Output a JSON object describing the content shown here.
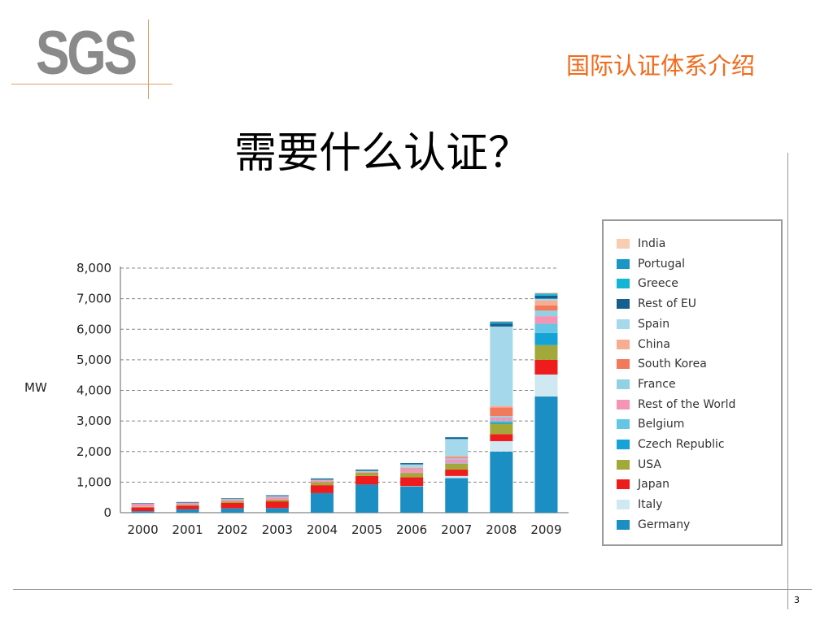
{
  "header": {
    "logo_text": "SGS",
    "title": "国际认证体系介绍"
  },
  "slide": {
    "title": "需要什么认证？",
    "page_number": "3"
  },
  "chart_data": {
    "type": "bar",
    "stacked": true,
    "ylabel": "MW",
    "ylim": [
      0,
      8000
    ],
    "yticks": [
      0,
      1000,
      2000,
      3000,
      4000,
      5000,
      6000,
      7000,
      8000
    ],
    "ytick_labels": [
      "0",
      "1,000",
      "2,000",
      "3,000",
      "4,000",
      "5,000",
      "6,000",
      "7,000",
      "8,000"
    ],
    "grid": true,
    "legend_position": "right",
    "categories": [
      "2000",
      "2001",
      "2002",
      "2003",
      "2004",
      "2005",
      "2006",
      "2007",
      "2008",
      "2009"
    ],
    "series": [
      {
        "name": "Germany",
        "color": "#1b8fc4",
        "values": [
          50,
          110,
          140,
          150,
          640,
          920,
          860,
          1130,
          2000,
          3800
        ]
      },
      {
        "name": "Italy",
        "color": "#cfe8f2",
        "values": [
          0,
          0,
          0,
          0,
          0,
          0,
          10,
          70,
          340,
          720
        ]
      },
      {
        "name": "Japan",
        "color": "#ee1c1c",
        "values": [
          120,
          120,
          180,
          220,
          260,
          280,
          290,
          210,
          230,
          480
        ]
      },
      {
        "name": "USA",
        "color": "#a3a83a",
        "values": [
          20,
          30,
          50,
          60,
          100,
          110,
          140,
          190,
          340,
          480
        ]
      },
      {
        "name": "Czech Republic",
        "color": "#15a3d6",
        "values": [
          0,
          0,
          0,
          0,
          0,
          0,
          0,
          0,
          50,
          400
        ]
      },
      {
        "name": "Belgium",
        "color": "#63c6e4",
        "values": [
          0,
          0,
          0,
          0,
          0,
          0,
          0,
          20,
          50,
          300
        ]
      },
      {
        "name": "Rest of the World",
        "color": "#f595b6",
        "values": [
          100,
          60,
          60,
          80,
          60,
          30,
          140,
          130,
          100,
          250
        ]
      },
      {
        "name": "France",
        "color": "#92d1e4",
        "values": [
          0,
          10,
          10,
          10,
          10,
          10,
          10,
          40,
          50,
          180
        ]
      },
      {
        "name": "South Korea",
        "color": "#f27a5c",
        "values": [
          0,
          0,
          0,
          0,
          0,
          0,
          20,
          40,
          280,
          170
        ]
      },
      {
        "name": "China",
        "color": "#f7ad8f",
        "values": [
          0,
          0,
          0,
          0,
          0,
          0,
          10,
          20,
          50,
          160
        ]
      },
      {
        "name": "Spain",
        "color": "#a4d8ea",
        "values": [
          0,
          0,
          10,
          20,
          10,
          20,
          100,
          560,
          2600,
          60
        ]
      },
      {
        "name": "Rest of EU",
        "color": "#145f8c",
        "values": [
          20,
          20,
          20,
          30,
          40,
          40,
          40,
          50,
          100,
          100
        ]
      },
      {
        "name": "Greece",
        "color": "#12b5d3",
        "values": [
          0,
          0,
          0,
          0,
          0,
          0,
          0,
          0,
          10,
          40
        ]
      },
      {
        "name": "Portugal",
        "color": "#1996c6",
        "values": [
          0,
          0,
          0,
          0,
          0,
          0,
          0,
          10,
          50,
          30
        ]
      },
      {
        "name": "India",
        "color": "#f8cdb4",
        "values": [
          0,
          0,
          0,
          0,
          0,
          0,
          0,
          0,
          20,
          30
        ]
      }
    ],
    "legend_order": [
      "India",
      "Portugal",
      "Greece",
      "Rest of EU",
      "Spain",
      "China",
      "South Korea",
      "France",
      "Rest of the World",
      "Belgium",
      "Czech Republic",
      "USA",
      "Japan",
      "Italy",
      "Germany"
    ]
  }
}
